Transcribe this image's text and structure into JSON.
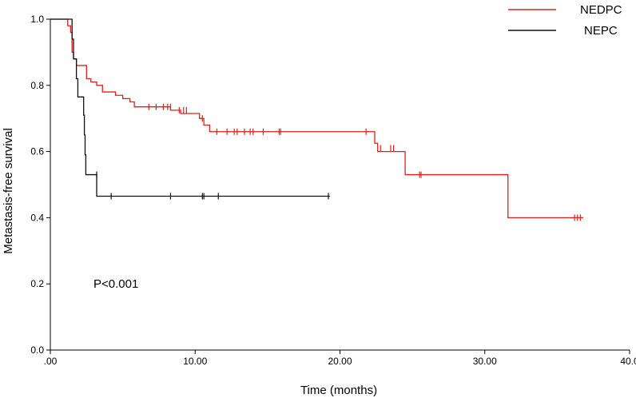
{
  "chart_data": {
    "type": "line",
    "step": true,
    "xlabel": "Time (months)",
    "ylabel": "Metastasis-free survival",
    "xlim": [
      0,
      40
    ],
    "ylim": [
      0,
      1
    ],
    "xticks": [
      0,
      10,
      20,
      30,
      40
    ],
    "xtick_labels": [
      ".00",
      "10.00",
      "20.00",
      "30.00",
      "40.0"
    ],
    "yticks": [
      0,
      0.2,
      0.4,
      0.6,
      0.8,
      1.0
    ],
    "ytick_labels": [
      "0.0",
      "0.2",
      "0.4",
      "0.6",
      "0.8",
      "1.0"
    ],
    "grid": false,
    "legend_position": "top-right",
    "annotation": "P<0.001",
    "series": [
      {
        "name": "NEDPC",
        "color": "#e0201a",
        "steps": [
          [
            0,
            1.0
          ],
          [
            1.2,
            0.98
          ],
          [
            1.4,
            0.96
          ],
          [
            1.5,
            0.9
          ],
          [
            1.6,
            0.88
          ],
          [
            1.8,
            0.86
          ],
          [
            2.5,
            0.82
          ],
          [
            2.8,
            0.81
          ],
          [
            3.2,
            0.8
          ],
          [
            3.6,
            0.78
          ],
          [
            4.5,
            0.77
          ],
          [
            5.0,
            0.76
          ],
          [
            5.5,
            0.75
          ],
          [
            5.8,
            0.735
          ],
          [
            8.3,
            0.725
          ],
          [
            9.0,
            0.715
          ],
          [
            10.3,
            0.7
          ],
          [
            10.6,
            0.68
          ],
          [
            11.0,
            0.66
          ],
          [
            22.4,
            0.625
          ],
          [
            22.6,
            0.6
          ],
          [
            24.5,
            0.53
          ],
          [
            31.6,
            0.4
          ],
          [
            36.8,
            0.4
          ]
        ],
        "censored": [
          [
            6.8,
            0.735
          ],
          [
            7.3,
            0.735
          ],
          [
            7.8,
            0.735
          ],
          [
            8.1,
            0.735
          ],
          [
            8.3,
            0.735
          ],
          [
            8.9,
            0.725
          ],
          [
            9.2,
            0.725
          ],
          [
            9.4,
            0.725
          ],
          [
            10.5,
            0.7
          ],
          [
            11.5,
            0.66
          ],
          [
            12.2,
            0.66
          ],
          [
            12.7,
            0.66
          ],
          [
            12.9,
            0.66
          ],
          [
            13.4,
            0.66
          ],
          [
            13.8,
            0.66
          ],
          [
            14.0,
            0.66
          ],
          [
            14.7,
            0.66
          ],
          [
            15.8,
            0.66
          ],
          [
            15.9,
            0.66
          ],
          [
            21.8,
            0.66
          ],
          [
            22.8,
            0.61
          ],
          [
            23.5,
            0.61
          ],
          [
            23.7,
            0.61
          ],
          [
            25.5,
            0.53
          ],
          [
            25.6,
            0.53
          ],
          [
            36.2,
            0.4
          ],
          [
            36.4,
            0.4
          ],
          [
            36.6,
            0.4
          ]
        ]
      },
      {
        "name": "NEPC",
        "color": "#111111",
        "steps": [
          [
            0,
            1.0
          ],
          [
            1.5,
            0.94
          ],
          [
            1.6,
            0.88
          ],
          [
            1.8,
            0.82
          ],
          [
            1.9,
            0.765
          ],
          [
            2.3,
            0.71
          ],
          [
            2.35,
            0.65
          ],
          [
            2.4,
            0.59
          ],
          [
            2.45,
            0.53
          ],
          [
            3.2,
            0.465
          ],
          [
            19.3,
            0.465
          ]
        ],
        "censored": [
          [
            3.2,
            0.53
          ],
          [
            4.2,
            0.465
          ],
          [
            8.3,
            0.465
          ],
          [
            10.5,
            0.465
          ],
          [
            10.6,
            0.465
          ],
          [
            11.6,
            0.465
          ],
          [
            19.2,
            0.465
          ]
        ]
      }
    ]
  }
}
